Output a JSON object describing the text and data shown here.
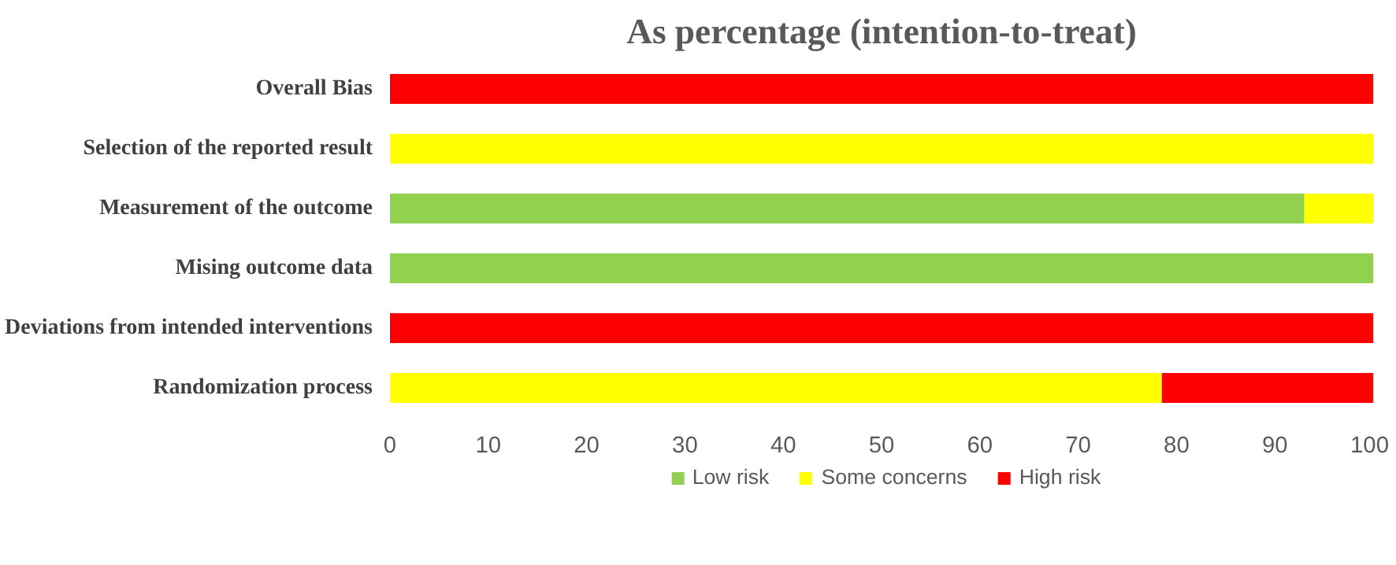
{
  "chart_data": {
    "type": "bar",
    "orientation": "horizontal",
    "stacked": true,
    "title": "As percentage (intention-to-treat)",
    "categories": [
      "Overall Bias",
      "Selection of the reported result",
      "Measurement of the outcome",
      "Mising outcome data",
      "Deviations from intended interventions",
      "Randomization process"
    ],
    "series": [
      {
        "name": "Low risk",
        "color": "#92d050",
        "values": [
          0,
          0,
          93,
          100,
          0,
          0
        ]
      },
      {
        "name": "Some concerns",
        "color": "#ffff00",
        "values": [
          0,
          100,
          7,
          0,
          0,
          78.5
        ]
      },
      {
        "name": "High risk",
        "color": "#ff0000",
        "values": [
          100,
          0,
          0,
          0,
          100,
          21.5
        ]
      }
    ],
    "xlim": [
      0,
      100
    ],
    "xticks": [
      0,
      10,
      20,
      30,
      40,
      50,
      60,
      70,
      80,
      90,
      100
    ],
    "grid": false,
    "legend": "bottom"
  }
}
